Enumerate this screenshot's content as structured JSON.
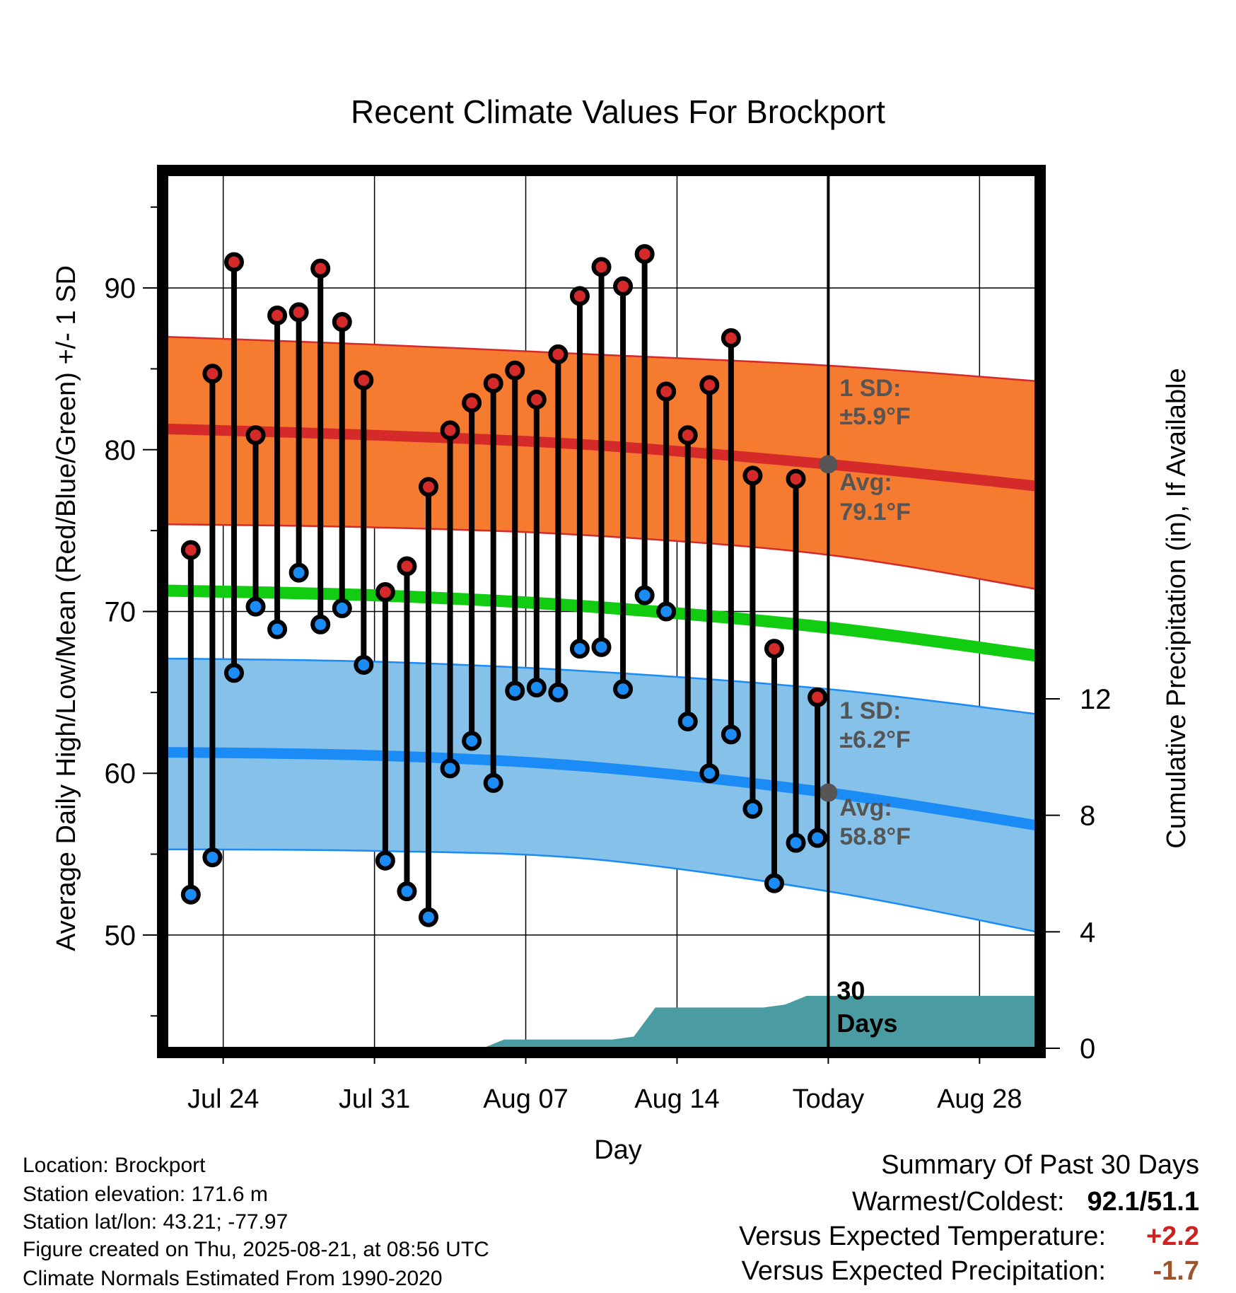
{
  "chart_data": {
    "type": "line",
    "title": "Recent Climate Values For Brockport",
    "xlabel": "Day",
    "ylabel_left": "Average Daily High/Low/Mean (Red/Blue/Green) +/- 1 SD",
    "ylabel_right": "Cumulative Precipitation (in), If Available",
    "x_range": [
      "2025-07-21",
      "2025-08-31"
    ],
    "y_left_range": [
      43,
      97
    ],
    "y_right_range": [
      0,
      30
    ],
    "x_ticks": [
      {
        "date": "2025-07-24",
        "label": "Jul 24"
      },
      {
        "date": "2025-07-31",
        "label": "Jul 31"
      },
      {
        "date": "2025-08-07",
        "label": "Aug 07"
      },
      {
        "date": "2025-08-14",
        "label": "Aug 14"
      },
      {
        "date": "2025-08-21",
        "label": "Today"
      },
      {
        "date": "2025-08-28",
        "label": "Aug 28"
      }
    ],
    "y_left_ticks": [
      50,
      60,
      70,
      80,
      90
    ],
    "y_right_ticks": [
      0,
      4,
      8,
      12
    ],
    "grid": true,
    "daily_observations": {
      "dates": [
        "2025-07-22",
        "2025-07-23",
        "2025-07-24",
        "2025-07-25",
        "2025-07-26",
        "2025-07-27",
        "2025-07-28",
        "2025-07-29",
        "2025-07-30",
        "2025-07-31",
        "2025-08-01",
        "2025-08-02",
        "2025-08-03",
        "2025-08-04",
        "2025-08-05",
        "2025-08-06",
        "2025-08-07",
        "2025-08-08",
        "2025-08-09",
        "2025-08-10",
        "2025-08-11",
        "2025-08-12",
        "2025-08-13",
        "2025-08-14",
        "2025-08-15",
        "2025-08-16",
        "2025-08-17",
        "2025-08-18",
        "2025-08-19",
        "2025-08-20"
      ],
      "high": [
        73.8,
        84.7,
        91.6,
        80.9,
        88.3,
        88.5,
        91.2,
        87.9,
        84.3,
        71.2,
        72.8,
        77.7,
        81.2,
        82.9,
        84.1,
        84.9,
        83.1,
        85.9,
        89.5,
        91.3,
        90.1,
        92.1,
        83.6,
        80.9,
        84.0,
        86.9,
        78.4,
        67.7,
        78.2,
        64.7
      ],
      "low": [
        52.5,
        54.8,
        66.2,
        70.3,
        68.9,
        72.4,
        69.2,
        70.2,
        66.7,
        54.6,
        52.7,
        51.1,
        60.3,
        62.0,
        59.4,
        65.1,
        65.3,
        65.0,
        67.7,
        67.8,
        65.2,
        71.0,
        70.0,
        63.2,
        60.0,
        62.4,
        57.8,
        53.2,
        55.7,
        56.0
      ]
    },
    "normal_high": {
      "dates": [
        "2025-07-21",
        "2025-07-31",
        "2025-08-10",
        "2025-08-21",
        "2025-08-31"
      ],
      "mean": [
        81.3,
        80.9,
        80.3,
        79.1,
        77.7
      ],
      "upper": [
        87.0,
        86.5,
        85.9,
        85.2,
        84.2
      ],
      "lower": [
        75.4,
        75.2,
        74.7,
        73.5,
        71.3
      ]
    },
    "normal_low": {
      "dates": [
        "2025-07-21",
        "2025-07-31",
        "2025-08-10",
        "2025-08-21",
        "2025-08-31"
      ],
      "mean": [
        61.3,
        61.1,
        60.4,
        58.8,
        56.7
      ],
      "upper": [
        67.1,
        66.9,
        66.3,
        65.2,
        63.6
      ],
      "lower": [
        55.3,
        55.2,
        54.7,
        52.7,
        50.1
      ]
    },
    "normal_mean": {
      "dates": [
        "2025-07-21",
        "2025-07-31",
        "2025-08-10",
        "2025-08-21",
        "2025-08-31"
      ],
      "values": [
        71.3,
        71.0,
        70.3,
        69.0,
        67.2
      ]
    },
    "cumulative_precip": {
      "dates": [
        "2025-08-05",
        "2025-08-06",
        "2025-08-11",
        "2025-08-12",
        "2025-08-13",
        "2025-08-18",
        "2025-08-19",
        "2025-08-20",
        "2025-08-31"
      ],
      "values": [
        0.0,
        0.3,
        0.3,
        0.4,
        1.4,
        1.4,
        1.5,
        1.8,
        1.8
      ]
    },
    "annotations": {
      "high_sd": "1 SD:",
      "high_sd_value": "±5.9°F",
      "high_avg": "Avg:",
      "high_avg_value": "79.1°F",
      "low_sd": "1 SD:",
      "low_sd_value": "±6.2°F",
      "low_avg": "Avg:",
      "low_avg_value": "58.8°F",
      "days_line1": "30",
      "days_line2": "Days"
    },
    "colors": {
      "high_band": "#f47b30",
      "high_mean": "#d42a2a",
      "low_band": "#85c1e8",
      "low_mean": "#1b8cf5",
      "normal_mean": "#11cc11",
      "precip": "#4a9ba2",
      "high_dot": "#d42a2a",
      "low_dot": "#1b8cf5"
    }
  },
  "footer": {
    "location": "Location: Brockport",
    "elevation": "Station elevation: 171.6 m",
    "latlon": "Station lat/lon: 43.21; -77.97",
    "created": "Figure created on Thu, 2025-08-21, at 08:56 UTC",
    "normals": "Climate Normals Estimated From 1990-2020"
  },
  "summary": {
    "title": "Summary Of Past 30 Days",
    "warmest_label": "Warmest/Coldest:",
    "warmest_value": "92.1/51.1",
    "temp_label": "Versus Expected Temperature:",
    "temp_value": "+2.2",
    "temp_color": "#cc2222",
    "precip_label": "Versus Expected Precipitation:",
    "precip_value": "-1.7",
    "precip_color": "#a0522d"
  }
}
